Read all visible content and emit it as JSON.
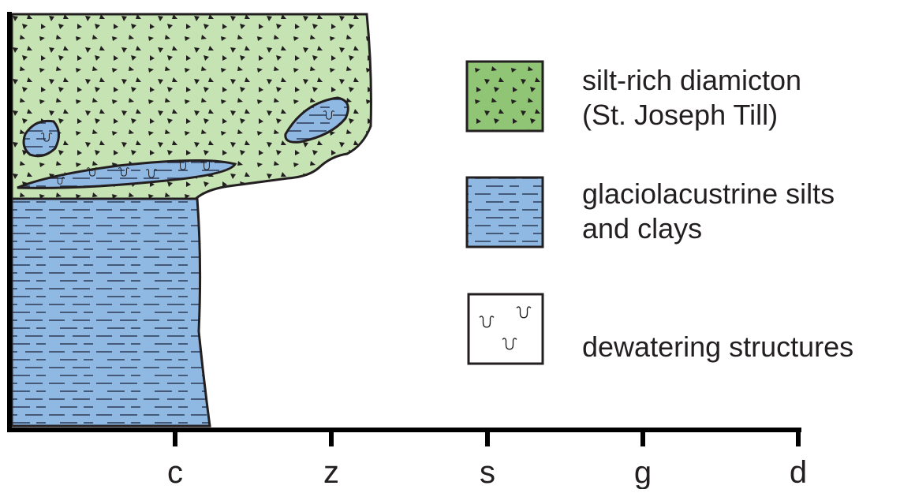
{
  "legend": [
    {
      "lines": [
        "silt-rich diamicton",
        "(St. Joseph Till)"
      ]
    },
    {
      "lines": [
        "glaciolacustrine silts",
        "and clays"
      ]
    },
    {
      "lines": [
        "dewatering structures"
      ]
    }
  ],
  "axis": {
    "labels": [
      "c",
      "z",
      "s",
      "g",
      "d"
    ]
  }
}
